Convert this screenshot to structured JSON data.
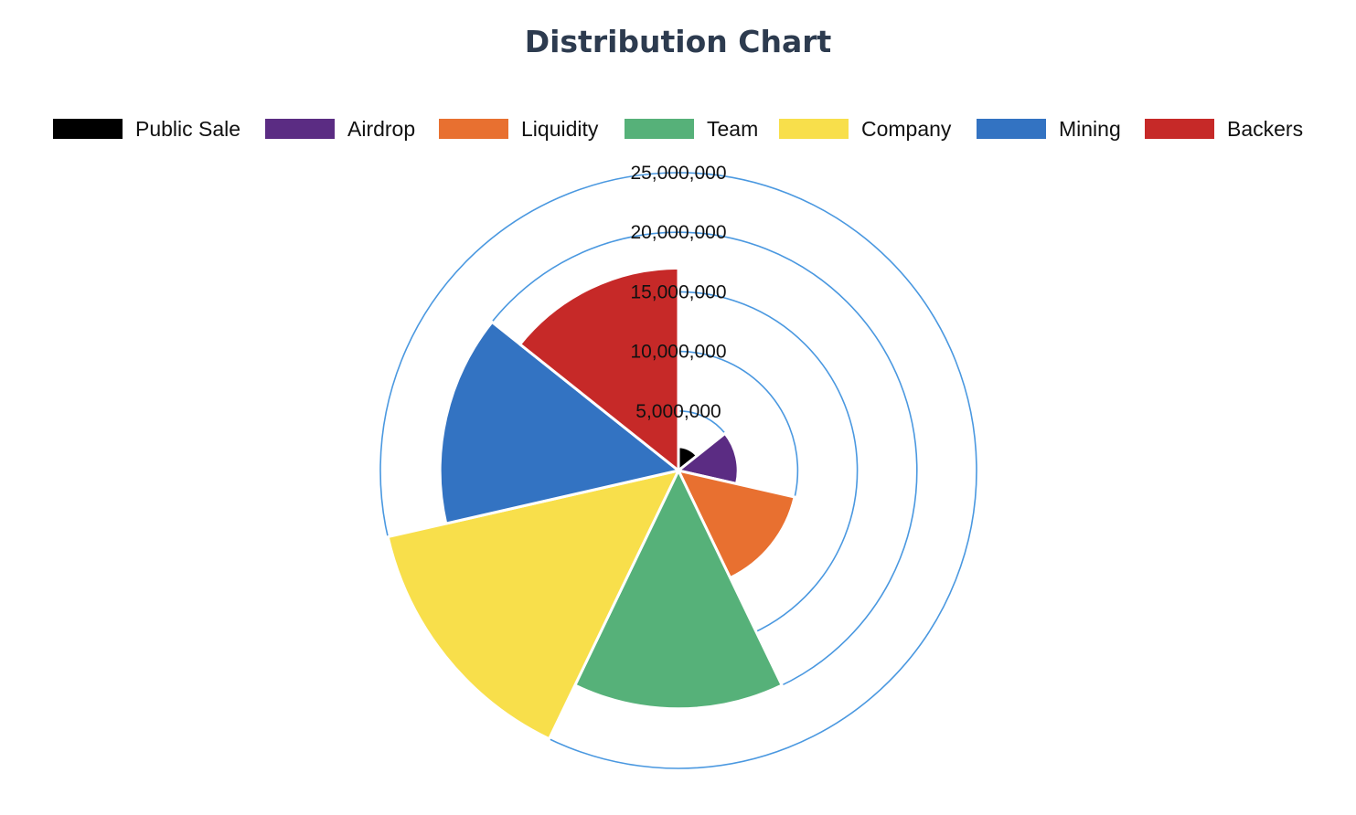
{
  "chart_data": {
    "type": "polar-area",
    "title": "Distribution Chart",
    "categories": [
      "Public Sale",
      "Airdrop",
      "Liquidity",
      "Team",
      "Company",
      "Mining",
      "Backers"
    ],
    "values": [
      2000000,
      5000000,
      10000000,
      20000000,
      25000000,
      20000000,
      17000000
    ],
    "colors": [
      "#000000",
      "#5b2c83",
      "#e87030",
      "#56b179",
      "#f8df4b",
      "#3373c2",
      "#c62928"
    ],
    "radial_axis": {
      "min": 0,
      "max": 25000000,
      "ticks": [
        "5,000,000",
        "10,000,000",
        "15,000,000",
        "20,000,000",
        "25,000,000"
      ],
      "grid_color": "#4a98e0",
      "grid": true
    },
    "legend_position": "top"
  }
}
